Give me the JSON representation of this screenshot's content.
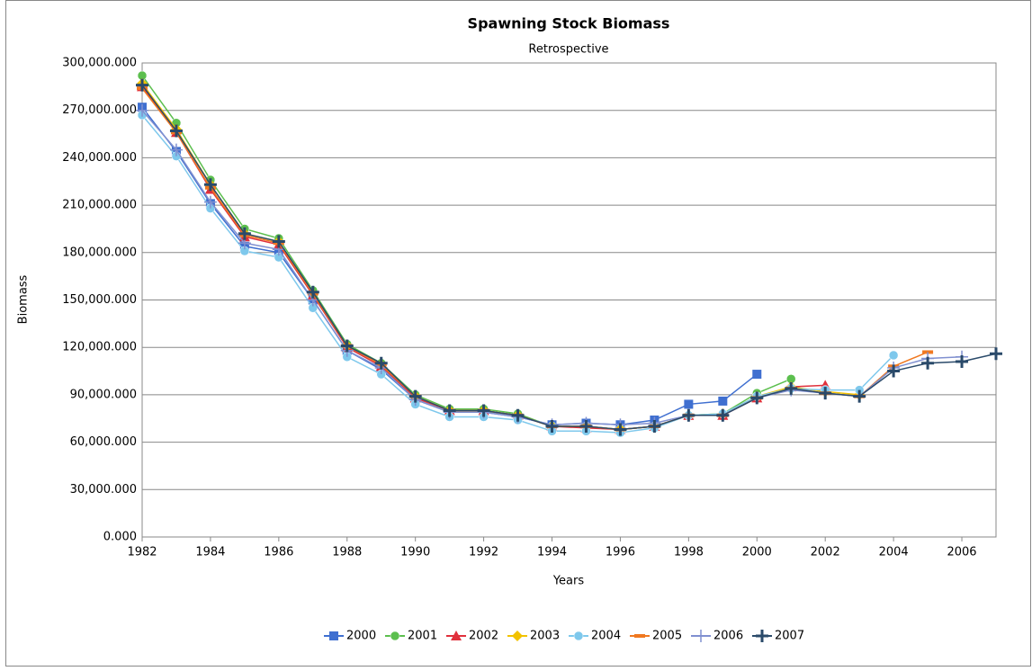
{
  "chart_data": {
    "type": "line",
    "title": "Spawning Stock Biomass",
    "subtitle": "Retrospective",
    "x_label": "Years",
    "y_label": "Biomass",
    "x": [
      1982,
      1983,
      1984,
      1985,
      1986,
      1987,
      1988,
      1989,
      1990,
      1991,
      1992,
      1993,
      1994,
      1995,
      1996,
      1997,
      1998,
      1999,
      2000,
      2001,
      2002,
      2003,
      2004,
      2005,
      2006,
      2007
    ],
    "xlim": [
      1982,
      2007
    ],
    "xticks": [
      1982,
      1984,
      1986,
      1988,
      1990,
      1992,
      1994,
      1996,
      1998,
      2000,
      2002,
      2004,
      2006
    ],
    "ylim": [
      0,
      300000
    ],
    "yticks": [
      {
        "value": 0,
        "label": "0.000"
      },
      {
        "value": 30000,
        "label": "30,000.000"
      },
      {
        "value": 60000,
        "label": "60,000.000"
      },
      {
        "value": 90000,
        "label": "90,000.000"
      },
      {
        "value": 120000,
        "label": "120,000.000"
      },
      {
        "value": 150000,
        "label": "150,000.000"
      },
      {
        "value": 180000,
        "label": "180,000.000"
      },
      {
        "value": 210000,
        "label": "210,000.000"
      },
      {
        "value": 240000,
        "label": "240,000.000"
      },
      {
        "value": 270000,
        "label": "270,000.000"
      },
      {
        "value": 300000,
        "label": "300,000.000"
      }
    ],
    "grid": true,
    "legend": "bottom",
    "series": [
      {
        "name": "2000",
        "color": "#3f6fd0",
        "marker": "square",
        "values": [
          272000,
          244000,
          211000,
          184000,
          180000,
          150000,
          118000,
          106000,
          87000,
          79000,
          79000,
          76000,
          71000,
          72000,
          71000,
          74000,
          84000,
          86000,
          103000,
          null,
          null,
          null,
          null,
          null,
          null,
          null
        ]
      },
      {
        "name": "2001",
        "color": "#5cbf4e",
        "marker": "circle",
        "values": [
          292000,
          262000,
          226000,
          195000,
          189000,
          156000,
          122000,
          110000,
          90000,
          81000,
          81000,
          78000,
          70000,
          70000,
          68000,
          70000,
          77000,
          78000,
          91000,
          100000,
          null,
          null,
          null,
          null,
          null,
          null
        ]
      },
      {
        "name": "2002",
        "color": "#e0303c",
        "marker": "triangle",
        "values": [
          285000,
          256000,
          220000,
          190000,
          185000,
          153000,
          120000,
          108000,
          88000,
          80000,
          80000,
          77000,
          70000,
          69000,
          68000,
          70000,
          77000,
          77000,
          88000,
          95000,
          96000,
          null,
          null,
          null,
          null,
          null
        ]
      },
      {
        "name": "2003",
        "color": "#f2c200",
        "marker": "diamond",
        "values": [
          287000,
          258000,
          223000,
          192000,
          187000,
          154000,
          121000,
          109000,
          89000,
          80000,
          80000,
          77000,
          70000,
          70000,
          68000,
          70000,
          77000,
          78000,
          89000,
          95000,
          92000,
          90000,
          null,
          null,
          null,
          null
        ]
      },
      {
        "name": "2004",
        "color": "#7ec8ec",
        "marker": "circle",
        "values": [
          267000,
          241000,
          208000,
          181000,
          177000,
          145000,
          114000,
          103000,
          84000,
          76000,
          76000,
          74000,
          67000,
          67000,
          66000,
          69000,
          77000,
          78000,
          89000,
          94000,
          93000,
          93000,
          115000,
          null,
          null,
          null
        ]
      },
      {
        "name": "2005",
        "color": "#f07820",
        "marker": "dash",
        "values": [
          284000,
          256000,
          221000,
          191000,
          186000,
          154000,
          121000,
          109000,
          89000,
          80000,
          80000,
          77000,
          70000,
          70000,
          68000,
          70000,
          77000,
          77000,
          88000,
          94000,
          91000,
          89000,
          108000,
          117000,
          null,
          null
        ]
      },
      {
        "name": "2006",
        "color": "#8090d0",
        "marker": "plus",
        "values": [
          270000,
          245000,
          212000,
          186000,
          182000,
          150000,
          118000,
          107000,
          87000,
          79000,
          79000,
          76000,
          71000,
          72000,
          71000,
          72000,
          77000,
          77000,
          88000,
          93000,
          91000,
          89000,
          107000,
          113000,
          114000,
          null
        ]
      },
      {
        "name": "2007",
        "color": "#2a4a6a",
        "marker": "bigplus",
        "values": [
          286000,
          257000,
          223000,
          192000,
          187000,
          155000,
          121000,
          110000,
          89000,
          80000,
          80000,
          77000,
          70000,
          70000,
          68000,
          70000,
          77000,
          77000,
          88000,
          94000,
          91000,
          89000,
          105000,
          110000,
          111000,
          116000
        ]
      }
    ]
  }
}
